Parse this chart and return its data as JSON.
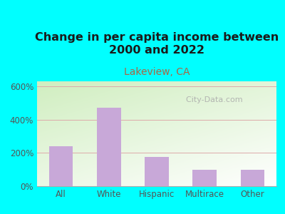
{
  "title": "Change in per capita income between\n2000 and 2022",
  "subtitle": "Lakeview, CA",
  "categories": [
    "All",
    "White",
    "Hispanic",
    "Multirace",
    "Other"
  ],
  "values": [
    240,
    470,
    175,
    100,
    100
  ],
  "bar_color": "#c8a8d8",
  "title_fontsize": 11.5,
  "subtitle_fontsize": 10,
  "subtitle_color": "#aa6644",
  "title_color": "#1a1a1a",
  "yticks": [
    0,
    200,
    400,
    600
  ],
  "ylim": [
    0,
    630
  ],
  "outer_bg_color": "#00ffff",
  "grid_color": "#ddaaaa",
  "watermark": "  City-Data.com",
  "watermark_color": "#aaaaaa",
  "tick_color": "#555555"
}
